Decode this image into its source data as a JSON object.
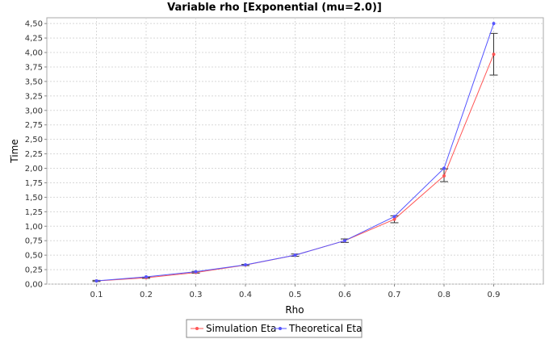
{
  "chart_data": {
    "type": "line",
    "title": "Variable rho [Exponential (mu=2.0)]",
    "xlabel": "Rho",
    "ylabel": "Time",
    "categories": [
      "0.1",
      "0.2",
      "0.3",
      "0.4",
      "0.5",
      "0.6",
      "0.7",
      "0.8",
      "0.9"
    ],
    "x": [
      0.1,
      0.2,
      0.3,
      0.4,
      0.5,
      0.6,
      0.7,
      0.8,
      0.9
    ],
    "xlim": [
      0.0,
      1.0
    ],
    "ylim": [
      0.0,
      4.6
    ],
    "yticks": [
      "0,00",
      "0,25",
      "0,50",
      "0,75",
      "1,00",
      "1,25",
      "1,50",
      "1,75",
      "2,00",
      "2,25",
      "2,50",
      "2,75",
      "3,00",
      "3,25",
      "3,50",
      "3,75",
      "4,00",
      "4,25",
      "4,50"
    ],
    "grid": true,
    "legend_position": "bottom",
    "series": [
      {
        "name": "Simulation Eta",
        "color": "#ff5555",
        "values": [
          0.055,
          0.11,
          0.2,
          0.33,
          0.5,
          0.75,
          1.12,
          1.87,
          3.97
        ],
        "error_low": [
          0.045,
          0.1,
          0.19,
          0.32,
          0.48,
          0.72,
          1.06,
          1.77,
          3.61
        ],
        "error_high": [
          0.065,
          0.12,
          0.22,
          0.34,
          0.52,
          0.78,
          1.18,
          1.99,
          4.33
        ]
      },
      {
        "name": "Theoretical Eta",
        "color": "#5555ff",
        "values": [
          0.056,
          0.125,
          0.214,
          0.333,
          0.5,
          0.75,
          1.167,
          2.0,
          4.5
        ]
      }
    ]
  }
}
